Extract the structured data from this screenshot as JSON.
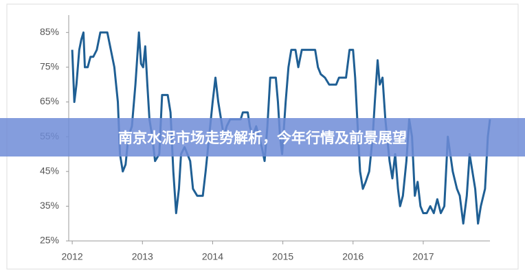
{
  "banner": {
    "title": "南京水泥市场走势解析，今年行情及前景展望"
  },
  "chart_data": {
    "type": "line",
    "x": [
      2012.0,
      2012.03,
      2012.06,
      2012.1,
      2012.13,
      2012.16,
      2012.18,
      2012.22,
      2012.26,
      2012.3,
      2012.35,
      2012.4,
      2012.5,
      2012.55,
      2012.6,
      2012.65,
      2012.68,
      2012.72,
      2012.76,
      2012.8,
      2012.85,
      2012.9,
      2012.95,
      2012.98,
      2013.01,
      2013.04,
      2013.07,
      2013.1,
      2013.14,
      2013.18,
      2013.24,
      2013.28,
      2013.36,
      2013.4,
      2013.44,
      2013.48,
      2013.52,
      2013.55,
      2013.6,
      2013.64,
      2013.68,
      2013.72,
      2013.78,
      2013.86,
      2013.9,
      2013.95,
      2014.0,
      2014.04,
      2014.08,
      2014.12,
      2014.16,
      2014.2,
      2014.25,
      2014.35,
      2014.4,
      2014.43,
      2014.5,
      2014.53,
      2014.57,
      2014.62,
      2014.66,
      2014.7,
      2014.74,
      2014.78,
      2014.82,
      2014.9,
      2014.93,
      2014.96,
      2014.99,
      2015.04,
      2015.08,
      2015.12,
      2015.18,
      2015.22,
      2015.27,
      2015.4,
      2015.46,
      2015.5,
      2015.54,
      2015.6,
      2015.66,
      2015.76,
      2015.8,
      2015.9,
      2015.95,
      2016.0,
      2016.03,
      2016.06,
      2016.1,
      2016.14,
      2016.18,
      2016.23,
      2016.28,
      2016.31,
      2016.35,
      2016.38,
      2016.42,
      2016.46,
      2016.52,
      2016.56,
      2016.6,
      2016.64,
      2016.67,
      2016.71,
      2016.76,
      2016.8,
      2016.84,
      2016.88,
      2016.92,
      2016.96,
      2017.0,
      2017.05,
      2017.1,
      2017.15,
      2017.2,
      2017.25,
      2017.3,
      2017.35,
      2017.42,
      2017.48,
      2017.52,
      2017.57,
      2017.62,
      2017.66,
      2017.7,
      2017.74,
      2017.78,
      2017.82,
      2017.88,
      2017.92,
      2017.95
    ],
    "series": [
      {
        "color": "#1f5f94",
        "values": [
          80,
          65,
          70,
          80,
          83,
          85,
          75,
          75,
          78,
          78,
          80,
          85,
          85,
          80,
          75,
          65,
          50,
          45,
          47,
          55,
          58,
          70,
          85,
          76,
          75,
          81,
          70,
          60,
          55,
          48,
          50,
          67,
          67,
          62,
          45,
          33,
          40,
          50,
          52,
          50,
          48,
          40,
          38,
          38,
          45,
          55,
          65,
          72,
          65,
          60,
          55,
          58,
          60,
          60,
          60,
          62,
          62,
          58,
          55,
          58,
          55,
          52,
          48,
          58,
          72,
          72,
          65,
          55,
          50,
          65,
          75,
          80,
          80,
          75,
          80,
          80,
          80,
          75,
          73,
          72,
          70,
          70,
          72,
          72,
          80,
          80,
          72,
          60,
          45,
          40,
          42,
          45,
          55,
          65,
          77,
          70,
          72,
          60,
          48,
          43,
          50,
          40,
          35,
          38,
          48,
          60,
          55,
          38,
          42,
          35,
          33,
          33,
          35,
          33,
          37,
          33,
          35,
          55,
          45,
          40,
          38,
          30,
          38,
          50,
          45,
          40,
          30,
          35,
          40,
          55,
          60
        ]
      }
    ],
    "xlim": [
      2011.95,
      2017.95
    ],
    "xticks": [
      2012,
      2013,
      2014,
      2015,
      2016,
      2017
    ],
    "ylim": [
      25,
      90
    ],
    "yticks": [
      {
        "value": 25,
        "label": "25%"
      },
      {
        "value": 35,
        "label": "35%"
      },
      {
        "value": 45,
        "label": "45%"
      },
      {
        "value": 55,
        "label": "55%"
      },
      {
        "value": 65,
        "label": "65%"
      },
      {
        "value": 75,
        "label": "75%"
      },
      {
        "value": 85,
        "label": "85%"
      }
    ]
  }
}
